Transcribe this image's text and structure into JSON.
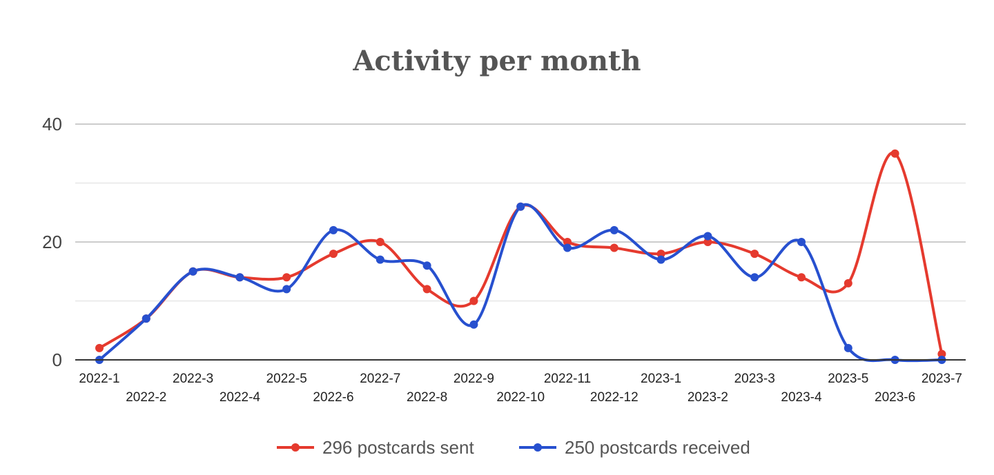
{
  "chart_data": {
    "type": "line",
    "title": "Activity per month",
    "categories": [
      "2022-1",
      "2022-2",
      "2022-3",
      "2022-4",
      "2022-5",
      "2022-6",
      "2022-7",
      "2022-8",
      "2022-9",
      "2022-10",
      "2022-11",
      "2022-12",
      "2023-1",
      "2023-2",
      "2023-3",
      "2023-4",
      "2023-5",
      "2023-6",
      "2023-7"
    ],
    "series": [
      {
        "name": "296 postcards sent",
        "color": "#e53a2e",
        "values": [
          2,
          7,
          15,
          14,
          14,
          18,
          20,
          12,
          10,
          26,
          20,
          19,
          18,
          20,
          18,
          14,
          13,
          35,
          1
        ]
      },
      {
        "name": "250 postcards received",
        "color": "#2750cf",
        "values": [
          0,
          7,
          15,
          14,
          12,
          22,
          17,
          16,
          6,
          26,
          19,
          22,
          17,
          21,
          14,
          20,
          2,
          0,
          0
        ]
      }
    ],
    "yticks": [
      "0",
      "20",
      "40"
    ],
    "ylim": [
      0,
      40
    ],
    "xlabel": "",
    "ylabel": "",
    "grid": true,
    "legend_position": "bottom",
    "line_style": "smooth"
  }
}
